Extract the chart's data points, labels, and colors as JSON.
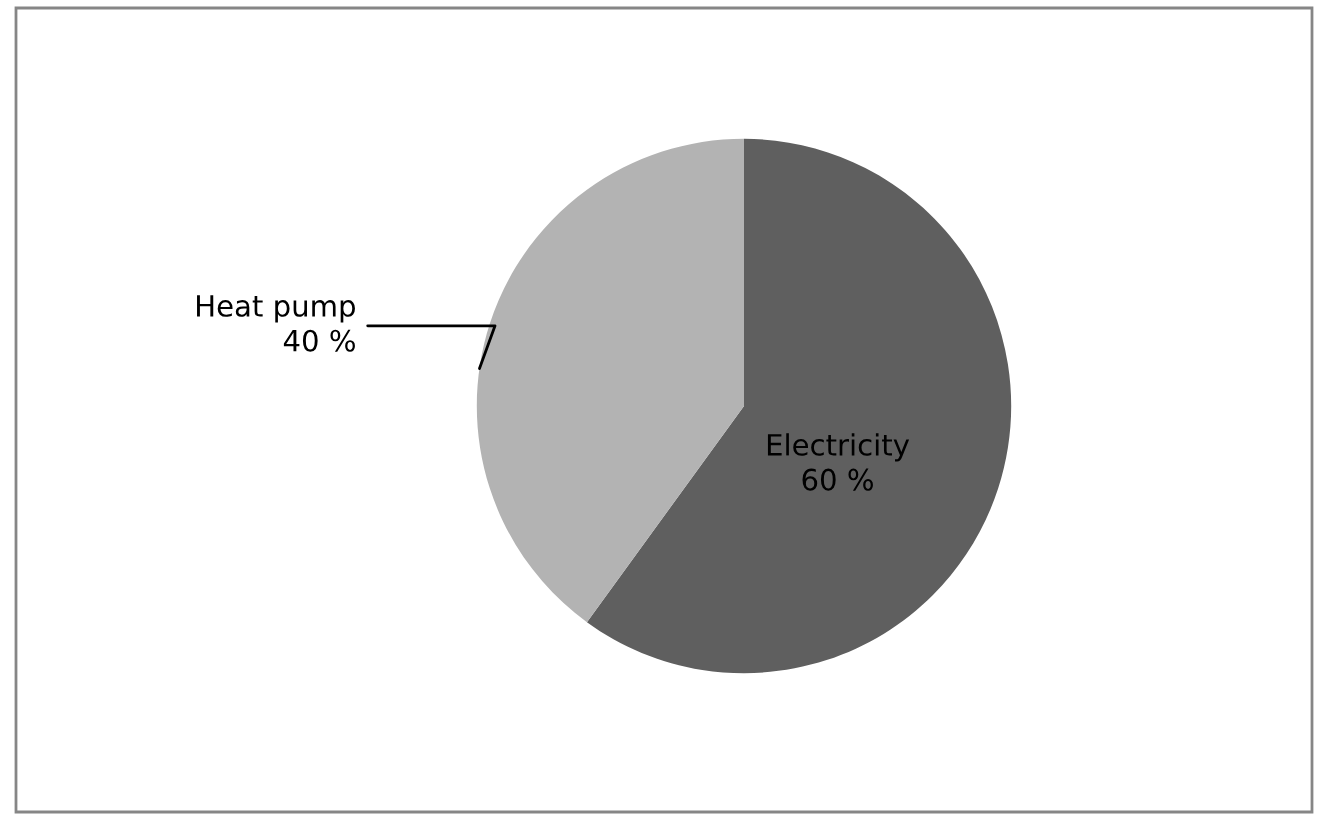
{
  "chart_data": {
    "type": "pie",
    "categories": [
      "Electricity",
      "Heat pump"
    ],
    "values": [
      60,
      40
    ],
    "value_labels": [
      "60 %",
      "40 %"
    ],
    "colors": [
      "#5f5f5f",
      "#b3b3b3"
    ],
    "legend": false
  }
}
